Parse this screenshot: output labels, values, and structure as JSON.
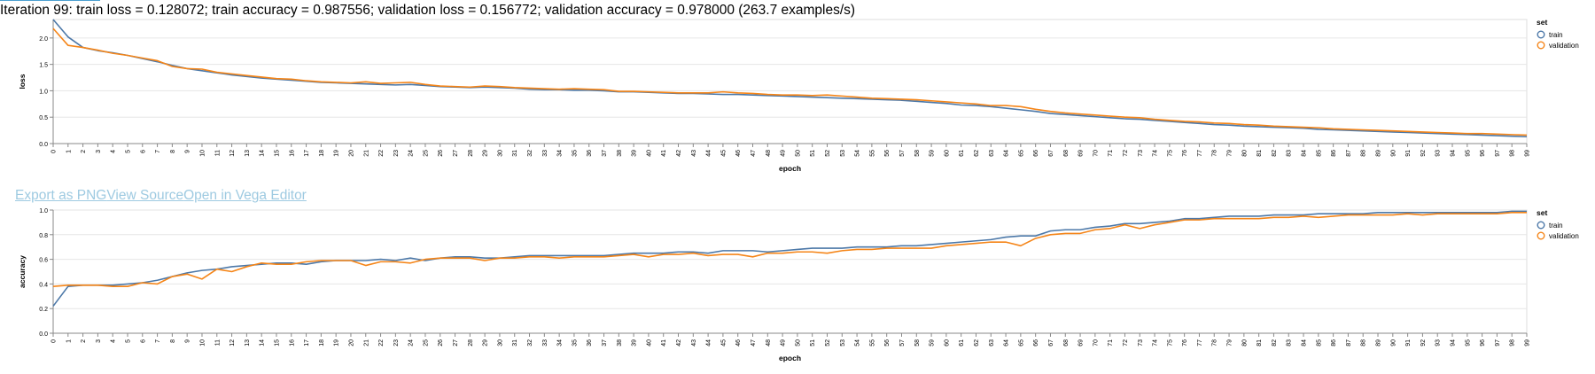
{
  "status": {
    "text": "Iteration 99: train loss = 0.128072; train accuracy = 0.987556; validation loss = 0.156772; validation accuracy = 0.978000 (263.7 examples/s)"
  },
  "actions": {
    "export_png": "Export as PNG",
    "view_source": "View Source",
    "open_editor": "Open in Vega Editor"
  },
  "colors": {
    "train": "#4c78a8",
    "validation": "#f58518",
    "grid": "#e6e6e6",
    "axis": "#888888",
    "links": "#9ecae1"
  },
  "chart_data": [
    {
      "type": "line",
      "xlabel": "epoch",
      "ylabel": "loss",
      "ylim": [
        0,
        2.35
      ],
      "yticks": [
        0.0,
        0.5,
        1.0,
        1.5,
        2.0
      ],
      "ytick_labels": [
        "0.0",
        "0.5",
        "1.0",
        "1.5",
        "2.0"
      ],
      "grid": true,
      "legend": {
        "title": "set",
        "position": "right",
        "entries": [
          "train",
          "validation"
        ]
      },
      "x": [
        0,
        1,
        2,
        3,
        4,
        5,
        6,
        7,
        8,
        9,
        10,
        11,
        12,
        13,
        14,
        15,
        16,
        17,
        18,
        19,
        20,
        21,
        22,
        23,
        24,
        25,
        26,
        27,
        28,
        29,
        30,
        31,
        32,
        33,
        34,
        35,
        36,
        37,
        38,
        39,
        40,
        41,
        42,
        43,
        44,
        45,
        46,
        47,
        48,
        49,
        50,
        51,
        52,
        53,
        54,
        55,
        56,
        57,
        58,
        59,
        60,
        61,
        62,
        63,
        64,
        65,
        66,
        67,
        68,
        69,
        70,
        71,
        72,
        73,
        74,
        75,
        76,
        77,
        78,
        79,
        80,
        81,
        82,
        83,
        84,
        85,
        86,
        87,
        88,
        89,
        90,
        91,
        92,
        93,
        94,
        95,
        96,
        97,
        98,
        99
      ],
      "series": [
        {
          "name": "train",
          "values": [
            2.35,
            2.02,
            1.82,
            1.76,
            1.72,
            1.67,
            1.61,
            1.55,
            1.48,
            1.42,
            1.38,
            1.34,
            1.3,
            1.27,
            1.24,
            1.22,
            1.2,
            1.18,
            1.16,
            1.15,
            1.14,
            1.13,
            1.12,
            1.11,
            1.12,
            1.1,
            1.08,
            1.07,
            1.06,
            1.07,
            1.06,
            1.05,
            1.03,
            1.02,
            1.02,
            1.01,
            1.01,
            1.0,
            0.98,
            0.98,
            0.97,
            0.96,
            0.95,
            0.95,
            0.94,
            0.93,
            0.93,
            0.92,
            0.91,
            0.9,
            0.89,
            0.88,
            0.87,
            0.86,
            0.85,
            0.84,
            0.83,
            0.82,
            0.8,
            0.78,
            0.76,
            0.73,
            0.72,
            0.7,
            0.67,
            0.64,
            0.61,
            0.57,
            0.55,
            0.53,
            0.51,
            0.49,
            0.47,
            0.46,
            0.44,
            0.42,
            0.4,
            0.38,
            0.36,
            0.35,
            0.33,
            0.32,
            0.31,
            0.3,
            0.29,
            0.27,
            0.26,
            0.25,
            0.24,
            0.23,
            0.22,
            0.21,
            0.2,
            0.19,
            0.18,
            0.17,
            0.16,
            0.15,
            0.14,
            0.13
          ]
        },
        {
          "name": "validation",
          "values": [
            2.18,
            1.86,
            1.82,
            1.77,
            1.71,
            1.67,
            1.62,
            1.57,
            1.46,
            1.42,
            1.41,
            1.35,
            1.32,
            1.29,
            1.26,
            1.23,
            1.22,
            1.19,
            1.17,
            1.16,
            1.15,
            1.17,
            1.14,
            1.15,
            1.16,
            1.12,
            1.09,
            1.08,
            1.07,
            1.09,
            1.08,
            1.06,
            1.05,
            1.04,
            1.03,
            1.04,
            1.03,
            1.02,
            0.99,
            0.99,
            0.98,
            0.97,
            0.96,
            0.96,
            0.96,
            0.98,
            0.96,
            0.95,
            0.93,
            0.92,
            0.92,
            0.91,
            0.92,
            0.9,
            0.88,
            0.86,
            0.85,
            0.84,
            0.83,
            0.81,
            0.79,
            0.77,
            0.75,
            0.72,
            0.72,
            0.7,
            0.65,
            0.61,
            0.58,
            0.56,
            0.54,
            0.52,
            0.5,
            0.49,
            0.46,
            0.44,
            0.42,
            0.41,
            0.39,
            0.38,
            0.36,
            0.35,
            0.33,
            0.32,
            0.31,
            0.3,
            0.28,
            0.27,
            0.26,
            0.25,
            0.24,
            0.23,
            0.22,
            0.21,
            0.2,
            0.19,
            0.19,
            0.18,
            0.17,
            0.16
          ]
        }
      ]
    },
    {
      "type": "line",
      "xlabel": "epoch",
      "ylabel": "accuracy",
      "ylim": [
        0,
        1.0
      ],
      "yticks": [
        0.0,
        0.2,
        0.4,
        0.6,
        0.8,
        1.0
      ],
      "ytick_labels": [
        "0.0",
        "0.2",
        "0.4",
        "0.6",
        "0.8",
        "1.0"
      ],
      "grid": true,
      "legend": {
        "title": "set",
        "position": "right",
        "entries": [
          "train",
          "validation"
        ]
      },
      "x": [
        0,
        1,
        2,
        3,
        4,
        5,
        6,
        7,
        8,
        9,
        10,
        11,
        12,
        13,
        14,
        15,
        16,
        17,
        18,
        19,
        20,
        21,
        22,
        23,
        24,
        25,
        26,
        27,
        28,
        29,
        30,
        31,
        32,
        33,
        34,
        35,
        36,
        37,
        38,
        39,
        40,
        41,
        42,
        43,
        44,
        45,
        46,
        47,
        48,
        49,
        50,
        51,
        52,
        53,
        54,
        55,
        56,
        57,
        58,
        59,
        60,
        61,
        62,
        63,
        64,
        65,
        66,
        67,
        68,
        69,
        70,
        71,
        72,
        73,
        74,
        75,
        76,
        77,
        78,
        79,
        80,
        81,
        82,
        83,
        84,
        85,
        86,
        87,
        88,
        89,
        90,
        91,
        92,
        93,
        94,
        95,
        96,
        97,
        98,
        99
      ],
      "series": [
        {
          "name": "train",
          "values": [
            0.22,
            0.38,
            0.39,
            0.39,
            0.39,
            0.4,
            0.41,
            0.43,
            0.46,
            0.49,
            0.51,
            0.52,
            0.54,
            0.55,
            0.56,
            0.57,
            0.57,
            0.56,
            0.58,
            0.59,
            0.59,
            0.59,
            0.6,
            0.59,
            0.61,
            0.59,
            0.61,
            0.62,
            0.62,
            0.61,
            0.61,
            0.62,
            0.63,
            0.63,
            0.63,
            0.63,
            0.63,
            0.63,
            0.64,
            0.65,
            0.65,
            0.65,
            0.66,
            0.66,
            0.65,
            0.67,
            0.67,
            0.67,
            0.66,
            0.67,
            0.68,
            0.69,
            0.69,
            0.69,
            0.7,
            0.7,
            0.7,
            0.71,
            0.71,
            0.72,
            0.73,
            0.74,
            0.75,
            0.76,
            0.78,
            0.79,
            0.79,
            0.83,
            0.84,
            0.84,
            0.86,
            0.87,
            0.89,
            0.89,
            0.9,
            0.91,
            0.93,
            0.93,
            0.94,
            0.95,
            0.95,
            0.95,
            0.96,
            0.96,
            0.96,
            0.97,
            0.97,
            0.97,
            0.97,
            0.98,
            0.98,
            0.98,
            0.98,
            0.98,
            0.98,
            0.98,
            0.98,
            0.98,
            0.99,
            0.99
          ]
        },
        {
          "name": "validation",
          "values": [
            0.38,
            0.39,
            0.39,
            0.39,
            0.38,
            0.38,
            0.41,
            0.4,
            0.46,
            0.48,
            0.44,
            0.52,
            0.5,
            0.54,
            0.57,
            0.56,
            0.56,
            0.58,
            0.59,
            0.59,
            0.59,
            0.55,
            0.58,
            0.58,
            0.57,
            0.6,
            0.61,
            0.61,
            0.61,
            0.59,
            0.61,
            0.61,
            0.62,
            0.62,
            0.61,
            0.62,
            0.62,
            0.62,
            0.63,
            0.64,
            0.62,
            0.64,
            0.64,
            0.65,
            0.63,
            0.64,
            0.64,
            0.62,
            0.65,
            0.65,
            0.66,
            0.66,
            0.65,
            0.67,
            0.68,
            0.68,
            0.69,
            0.69,
            0.69,
            0.69,
            0.71,
            0.72,
            0.73,
            0.74,
            0.74,
            0.71,
            0.77,
            0.8,
            0.81,
            0.81,
            0.84,
            0.85,
            0.88,
            0.85,
            0.88,
            0.9,
            0.92,
            0.92,
            0.93,
            0.93,
            0.93,
            0.93,
            0.94,
            0.94,
            0.95,
            0.94,
            0.95,
            0.96,
            0.96,
            0.96,
            0.96,
            0.97,
            0.96,
            0.97,
            0.97,
            0.97,
            0.97,
            0.97,
            0.98,
            0.98
          ]
        }
      ]
    }
  ]
}
